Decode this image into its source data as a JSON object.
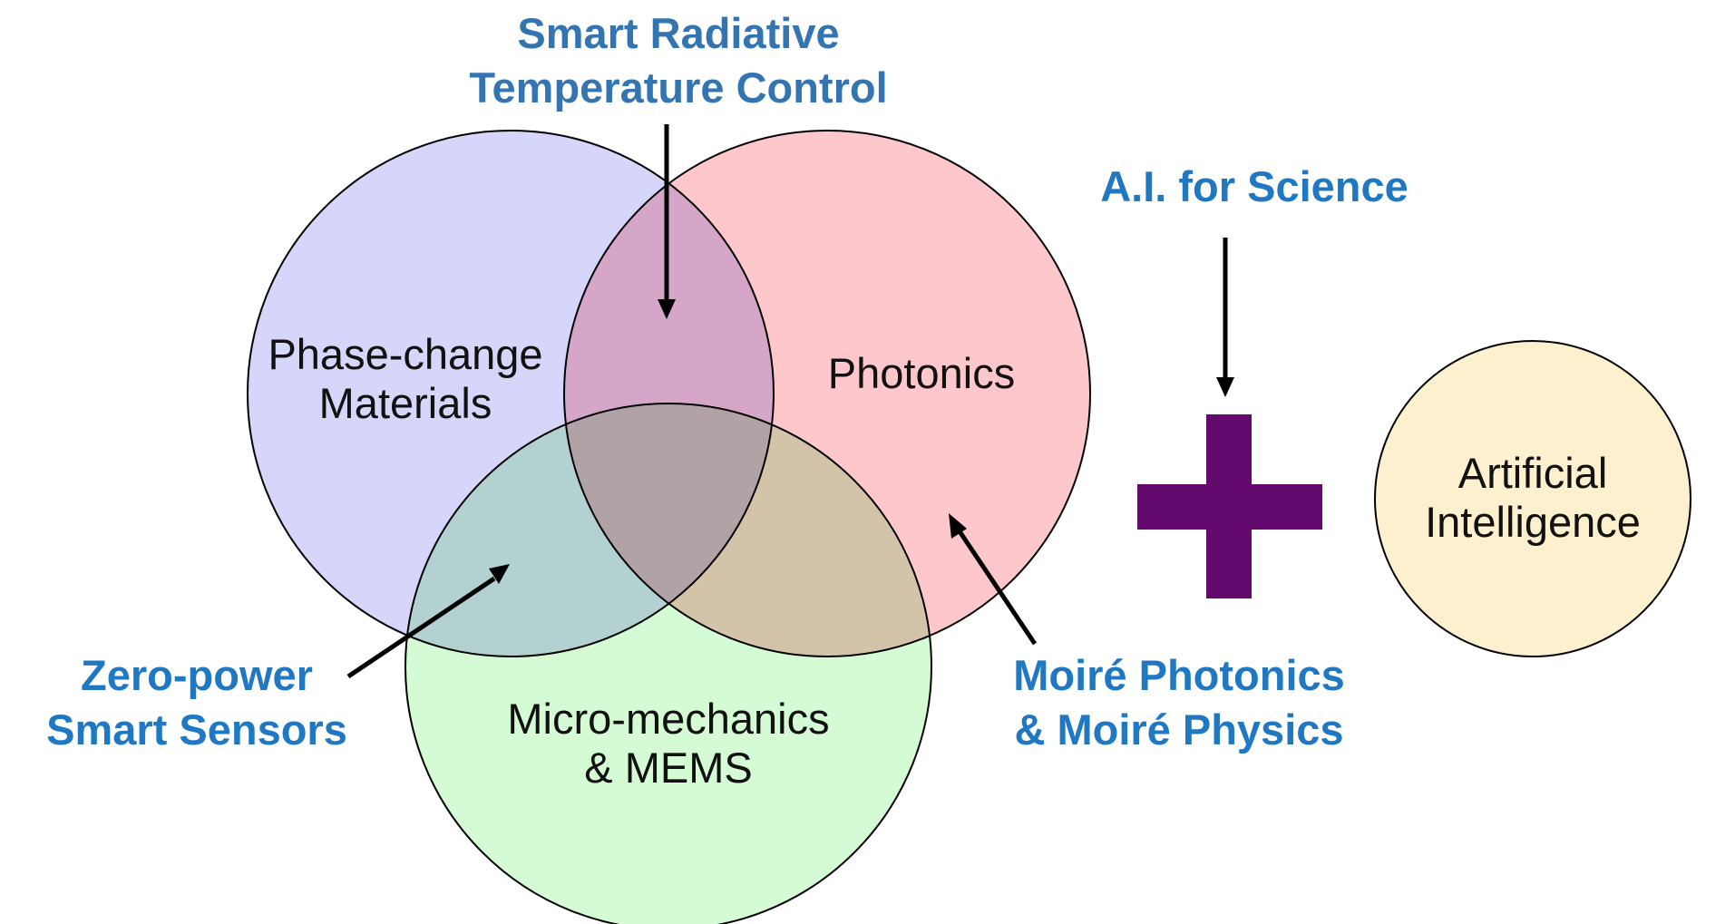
{
  "colors": {
    "phase_change": "#d6d5fa",
    "photonics": "#fec7cb",
    "micro_mechanics": "#d4fbd4",
    "artificial_intelligence": "#fdf0cf",
    "plus_sign": "#640a6e",
    "callout_text": "#1f78c1",
    "title_callout_text": "#3474b1"
  },
  "circles": {
    "phase_change": {
      "line1": "Phase-change",
      "line2": "Materials"
    },
    "photonics": {
      "line1": "Photonics"
    },
    "micro_mechanics": {
      "line1": "Micro-mechanics",
      "line2": "& MEMS"
    },
    "artificial_intelligence": {
      "line1": "Artificial",
      "line2": "Intelligence"
    }
  },
  "callouts": {
    "smart_radiative": {
      "line1": "Smart Radiative",
      "line2": "Temperature Control"
    },
    "ai_for_science": {
      "line1": "A.I. for Science"
    },
    "zero_power": {
      "line1": "Zero-power",
      "line2": "Smart Sensors"
    },
    "moire": {
      "line1": "Moiré Photonics",
      "line2": "& Moiré Physics"
    }
  },
  "icons": {
    "plus": "plus-icon"
  }
}
